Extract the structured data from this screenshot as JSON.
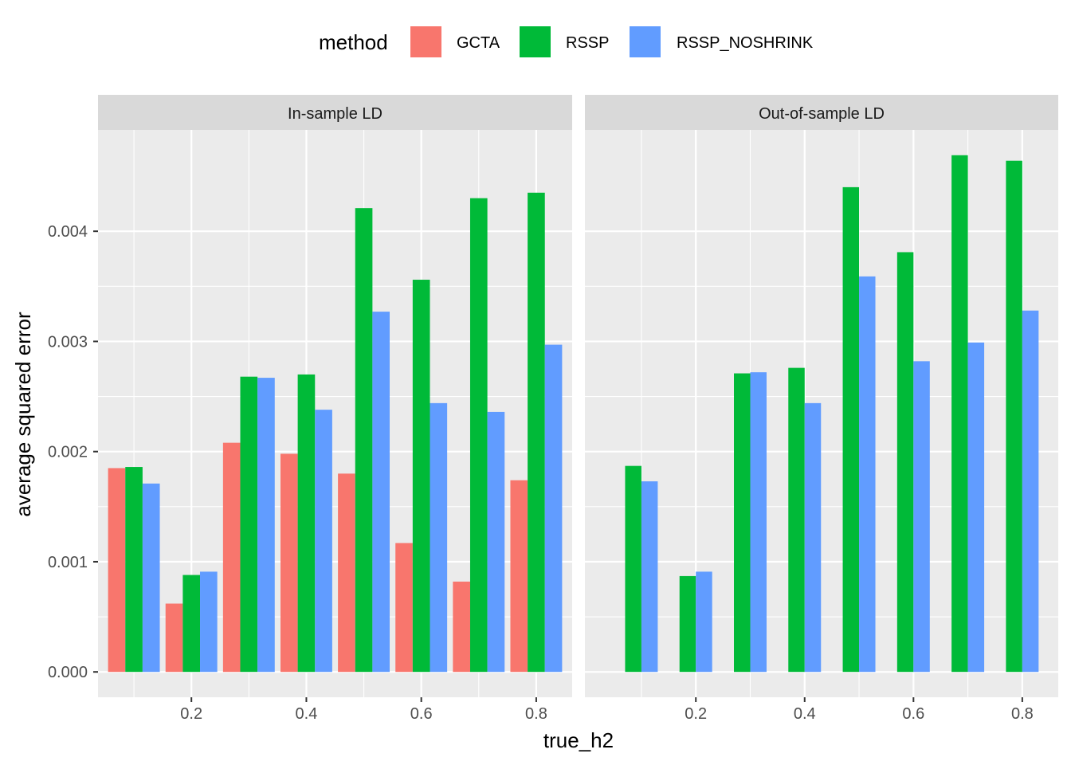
{
  "chart_data": {
    "type": "bar",
    "xlabel": "true_h2",
    "ylabel": "average squared error",
    "legend": {
      "title": "method",
      "position": "top",
      "entries": [
        "GCTA",
        "RSSP",
        "RSSP_NOSHRINK"
      ]
    },
    "colors": {
      "GCTA": "#F8766D",
      "RSSP": "#00BA38",
      "RSSP_NOSHRINK": "#619CFF"
    },
    "x_ticks": [
      "0.2",
      "0.4",
      "0.6",
      "0.8"
    ],
    "y_ticks": [
      "0.000",
      "0.001",
      "0.002",
      "0.003",
      "0.004"
    ],
    "grid": true,
    "panels": [
      {
        "title": "In-sample LD",
        "xlim": [
          0.0375,
          0.8625
        ],
        "ylim": [
          -0.00023,
          0.00492
        ],
        "groups": [
          {
            "x": 0.1,
            "GCTA": 0.00185,
            "RSSP": 0.00186,
            "RSSP_NOSHRINK": 0.00171
          },
          {
            "x": 0.2,
            "GCTA": 0.00062,
            "RSSP": 0.00088,
            "RSSP_NOSHRINK": 0.00091
          },
          {
            "x": 0.3,
            "GCTA": 0.00208,
            "RSSP": 0.00268,
            "RSSP_NOSHRINK": 0.00267
          },
          {
            "x": 0.4,
            "GCTA": 0.00198,
            "RSSP": 0.0027,
            "RSSP_NOSHRINK": 0.00238
          },
          {
            "x": 0.5,
            "GCTA": 0.0018,
            "RSSP": 0.00421,
            "RSSP_NOSHRINK": 0.00327
          },
          {
            "x": 0.6,
            "GCTA": 0.00117,
            "RSSP": 0.00356,
            "RSSP_NOSHRINK": 0.00244
          },
          {
            "x": 0.7,
            "GCTA": 0.00082,
            "RSSP": 0.0043,
            "RSSP_NOSHRINK": 0.00236
          },
          {
            "x": 0.8,
            "GCTA": 0.00174,
            "RSSP": 0.00435,
            "RSSP_NOSHRINK": 0.00297
          }
        ]
      },
      {
        "title": "Out-of-sample LD",
        "xlim": [
          -0.0039,
          0.8661
        ],
        "ylim": [
          -0.00023,
          0.00492
        ],
        "groups": [
          {
            "x": 0.1,
            "RSSP": 0.00187,
            "RSSP_NOSHRINK": 0.00173
          },
          {
            "x": 0.2,
            "RSSP": 0.00087,
            "RSSP_NOSHRINK": 0.00091
          },
          {
            "x": 0.3,
            "RSSP": 0.00271,
            "RSSP_NOSHRINK": 0.00272
          },
          {
            "x": 0.4,
            "RSSP": 0.00276,
            "RSSP_NOSHRINK": 0.00244
          },
          {
            "x": 0.5,
            "RSSP": 0.0044,
            "RSSP_NOSHRINK": 0.00359
          },
          {
            "x": 0.6,
            "RSSP": 0.00381,
            "RSSP_NOSHRINK": 0.00282
          },
          {
            "x": 0.7,
            "RSSP": 0.00469,
            "RSSP_NOSHRINK": 0.00299
          },
          {
            "x": 0.8,
            "RSSP": 0.00464,
            "RSSP_NOSHRINK": 0.00328
          }
        ]
      }
    ]
  }
}
